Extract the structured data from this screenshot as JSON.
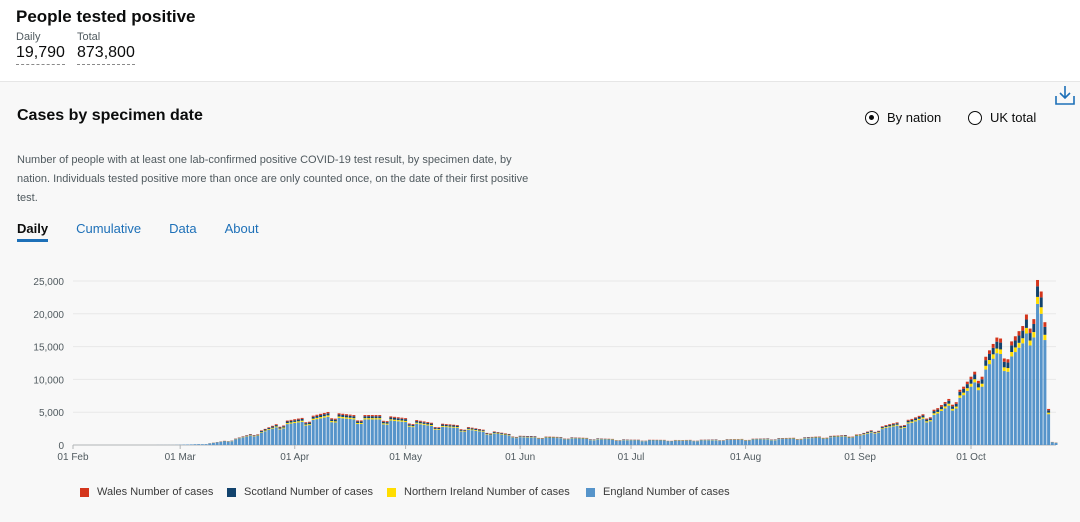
{
  "headline": {
    "title": "People tested positive",
    "daily_label": "Daily",
    "daily_value": "19,790",
    "total_label": "Total",
    "total_value": "873,800"
  },
  "card": {
    "title": "Cases by specimen date",
    "radio_by_nation": "By nation",
    "radio_uk_total": "UK total",
    "selected_option": "By nation",
    "description": "Number of people with at least one lab-confirmed positive COVID-19 test result, by specimen date, by nation. Individuals tested positive more than once are only counted once, on the date of their first positive test.",
    "tabs": [
      "Daily",
      "Cumulative",
      "Data",
      "About"
    ],
    "active_tab": "Daily"
  },
  "colors": {
    "wales": "#d4351c",
    "scotland": "#12436d",
    "northern_ireland": "#ffdd00",
    "england": "#5694ca",
    "accent": "#1d70b8"
  },
  "chart_data": {
    "type": "bar",
    "stacked": true,
    "x_range": [
      "2020-02-01",
      "2020-10-24"
    ],
    "ylim": [
      0,
      25000
    ],
    "y_ticks": [
      "0",
      "5,000",
      "10,000",
      "15,000",
      "20,000",
      "25,000"
    ],
    "x_ticks": [
      "01 Feb",
      "01 Mar",
      "01 Apr",
      "01 May",
      "01 Jun",
      "01 Jul",
      "01 Aug",
      "01 Sep",
      "01 Oct"
    ],
    "grid": true,
    "legend_position": "bottom",
    "england_anchors": [
      [
        "2020-02-01",
        0
      ],
      [
        "2020-02-28",
        10
      ],
      [
        "2020-03-08",
        150
      ],
      [
        "2020-03-15",
        700
      ],
      [
        "2020-03-22",
        1700
      ],
      [
        "2020-03-29",
        3100
      ],
      [
        "2020-04-05",
        3700
      ],
      [
        "2020-04-10",
        4300
      ],
      [
        "2020-04-17",
        3900
      ],
      [
        "2020-04-24",
        3900
      ],
      [
        "2020-05-01",
        3500
      ],
      [
        "2020-05-08",
        2900
      ],
      [
        "2020-05-15",
        2600
      ],
      [
        "2020-05-22",
        2000
      ],
      [
        "2020-06-01",
        1200
      ],
      [
        "2020-06-15",
        1000
      ],
      [
        "2020-07-01",
        700
      ],
      [
        "2020-07-15",
        650
      ],
      [
        "2020-08-01",
        800
      ],
      [
        "2020-08-15",
        950
      ],
      [
        "2020-09-01",
        1400
      ],
      [
        "2020-09-08",
        2600
      ],
      [
        "2020-09-15",
        3400
      ],
      [
        "2020-09-22",
        4800
      ],
      [
        "2020-09-29",
        7600
      ],
      [
        "2020-10-05",
        11500
      ],
      [
        "2020-10-08",
        14000
      ],
      [
        "2020-10-12",
        13500
      ],
      [
        "2020-10-15",
        15500
      ],
      [
        "2020-10-19",
        21500
      ],
      [
        "2020-10-20",
        20000
      ],
      [
        "2020-10-21",
        16000
      ],
      [
        "2020-10-22",
        4700
      ],
      [
        "2020-10-23",
        400
      ]
    ],
    "shares": {
      "wales": 0.045,
      "scotland": 0.075,
      "northern_ireland": 0.05
    },
    "series": [
      {
        "name": "Wales Number of cases",
        "color": "#d4351c"
      },
      {
        "name": "Scotland Number of cases",
        "color": "#12436d"
      },
      {
        "name": "Northern Ireland Number of cases",
        "color": "#ffdd00"
      },
      {
        "name": "England Number of cases",
        "color": "#5694ca"
      }
    ]
  }
}
